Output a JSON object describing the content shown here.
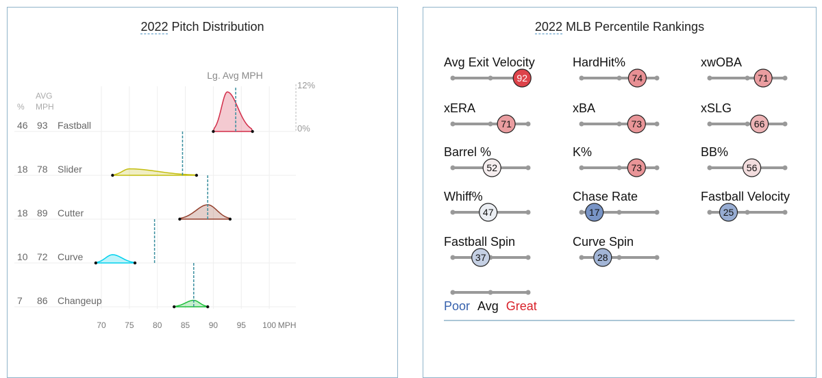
{
  "left_panel": {
    "year": "2022",
    "title": "Pitch Distribution"
  },
  "right_panel": {
    "year": "2022",
    "title": "MLB Percentile Rankings"
  },
  "chart_data": [
    {
      "type": "area",
      "title": "2022 Pitch Distribution",
      "xlabel": "MPH",
      "x_ticks": [
        70,
        75,
        80,
        85,
        90,
        95,
        100
      ],
      "xlim": [
        67,
        104
      ],
      "y_scale_labels": [
        "12%",
        "0%"
      ],
      "lg_avg_label": "Lg. Avg MPH",
      "col_headers": {
        "pct": "%",
        "avg": "AVG",
        "mph": "MPH"
      },
      "pitches": [
        {
          "name": "Fastball",
          "pct": 46,
          "avg_mph": 93,
          "lg_avg_mph": 94,
          "range": [
            90,
            97
          ],
          "peak": 92.5,
          "peak_density": 11,
          "color": "#d22d49"
        },
        {
          "name": "Slider",
          "pct": 18,
          "avg_mph": 78,
          "lg_avg_mph": 84.5,
          "range": [
            72,
            87
          ],
          "peak": 75,
          "peak_density": 1.8,
          "color": "#c3bd0e"
        },
        {
          "name": "Cutter",
          "pct": 18,
          "avg_mph": 89,
          "lg_avg_mph": 89,
          "range": [
            84,
            93
          ],
          "peak": 89,
          "peak_density": 4,
          "color": "#933f2c"
        },
        {
          "name": "Curve",
          "pct": 10,
          "avg_mph": 72,
          "lg_avg_mph": 79.5,
          "range": [
            69,
            76
          ],
          "peak": 72,
          "peak_density": 2.3,
          "color": "#00d1ed"
        },
        {
          "name": "Changeup",
          "pct": 7,
          "avg_mph": 86,
          "lg_avg_mph": 86.5,
          "range": [
            83,
            89
          ],
          "peak": 86.5,
          "peak_density": 1.8,
          "color": "#1dbe3a"
        }
      ]
    },
    {
      "type": "percentile",
      "title": "2022 MLB Percentile Rankings",
      "metrics": [
        {
          "label": "Avg Exit Velocity",
          "value": 92
        },
        {
          "label": "HardHit%",
          "value": 74
        },
        {
          "label": "xwOBA",
          "value": 71
        },
        {
          "label": "xERA",
          "value": 71
        },
        {
          "label": "xBA",
          "value": 73
        },
        {
          "label": "xSLG",
          "value": 66
        },
        {
          "label": "Barrel %",
          "value": 52
        },
        {
          "label": "K%",
          "value": 73
        },
        {
          "label": "BB%",
          "value": 56
        },
        {
          "label": "Whiff%",
          "value": 47
        },
        {
          "label": "Chase Rate",
          "value": 17
        },
        {
          "label": "Fastball Velocity",
          "value": 25
        },
        {
          "label": "Fastball Spin",
          "value": 37
        },
        {
          "label": "Curve Spin",
          "value": 28
        }
      ],
      "legend": {
        "poor": "Poor",
        "avg": "Avg",
        "great": "Great",
        "poor_color": "#3661ad",
        "great_color": "#d82129"
      }
    }
  ]
}
